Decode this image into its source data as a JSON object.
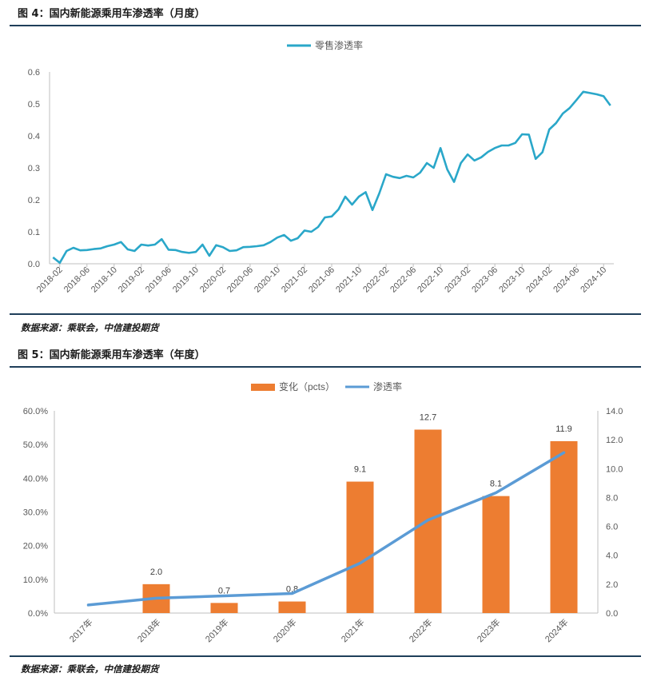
{
  "figure4": {
    "title": "图 4：国内新能源乘用车渗透率（月度）",
    "source": "数据来源：乘联会，中信建投期货",
    "chart_data": {
      "type": "line",
      "title": "",
      "xlabel": "",
      "ylabel": "",
      "ylim": [
        0,
        0.6
      ],
      "y_ticks": [
        "0.0",
        "0.1",
        "0.2",
        "0.3",
        "0.4",
        "0.5",
        "0.6"
      ],
      "x_tick_labels": [
        "2018-02",
        "2018-06",
        "2018-10",
        "2019-02",
        "2019-06",
        "2019-10",
        "2020-02",
        "2020-06",
        "2020-10",
        "2021-02",
        "2021-06",
        "2021-10",
        "2022-02",
        "2022-06",
        "2022-10",
        "2023-02",
        "2023-06",
        "2023-10",
        "2024-02",
        "2024-06",
        "2024-10"
      ],
      "legend_position": "top-center",
      "colors": {
        "line": "#2aa7c9"
      },
      "series": [
        {
          "name": "零售渗透率",
          "start": "2018-01",
          "values": [
            0.02,
            0.003,
            0.04,
            0.05,
            0.042,
            0.043,
            0.046,
            0.048,
            0.055,
            0.06,
            0.068,
            0.045,
            0.04,
            0.06,
            0.057,
            0.06,
            0.077,
            0.044,
            0.043,
            0.037,
            0.034,
            0.037,
            0.06,
            0.025,
            0.058,
            0.052,
            0.04,
            0.042,
            0.052,
            0.053,
            0.055,
            0.058,
            0.068,
            0.082,
            0.09,
            0.072,
            0.08,
            0.104,
            0.1,
            0.115,
            0.145,
            0.148,
            0.17,
            0.21,
            0.185,
            0.21,
            0.224,
            0.168,
            0.22,
            0.28,
            0.272,
            0.268,
            0.275,
            0.27,
            0.285,
            0.315,
            0.3,
            0.362,
            0.295,
            0.256,
            0.315,
            0.342,
            0.323,
            0.333,
            0.35,
            0.362,
            0.37,
            0.37,
            0.378,
            0.405,
            0.404,
            0.328,
            0.349,
            0.42,
            0.44,
            0.47,
            0.487,
            0.512,
            0.538,
            0.534,
            0.53,
            0.524,
            0.495
          ]
        }
      ]
    }
  },
  "figure5": {
    "title": "图 5：国内新能源乘用车渗透率（年度）",
    "source": "数据来源：乘联会，中信建投期货",
    "chart_data": {
      "type": "bar",
      "title": "",
      "categories": [
        "2017年",
        "2018年",
        "2019年",
        "2020年",
        "2021年",
        "2022年",
        "2023年",
        "2024年"
      ],
      "legend_position": "top-center",
      "left_axis": {
        "ylim": [
          0,
          60
        ],
        "ticks": [
          "0.0%",
          "10.0%",
          "20.0%",
          "30.0%",
          "40.0%",
          "50.0%",
          "60.0%"
        ]
      },
      "right_axis": {
        "ylim": [
          0,
          14
        ],
        "ticks": [
          "0.0",
          "2.0",
          "4.0",
          "6.0",
          "8.0",
          "10.0",
          "12.0",
          "14.0"
        ]
      },
      "colors": {
        "bar": "#ed7d31",
        "line": "#5b9bd5"
      },
      "series": [
        {
          "name": "变化（pcts）",
          "type": "bar",
          "axis": "right",
          "values": [
            null,
            2.0,
            0.7,
            0.8,
            9.1,
            12.7,
            8.1,
            11.9
          ],
          "labels": [
            "",
            "2.0",
            "0.7",
            "0.8",
            "9.1",
            "12.7",
            "8.1",
            "11.9"
          ]
        },
        {
          "name": "渗透率",
          "type": "line",
          "axis": "left",
          "values": [
            2.4,
            4.4,
            5.1,
            5.8,
            14.8,
            27.6,
            35.7,
            47.6
          ]
        }
      ]
    }
  }
}
